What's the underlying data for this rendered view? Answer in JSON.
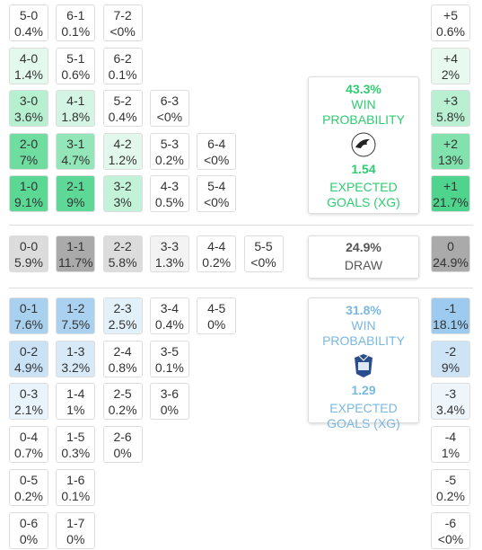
{
  "sections": [
    {
      "rows": [
        {
          "cells": [
            {
              "score": "5-0",
              "prob": "0.4%",
              "color": "#ffffff"
            },
            {
              "score": "6-1",
              "prob": "0.1%",
              "color": "#ffffff"
            },
            {
              "score": "7-2",
              "prob": "<0%",
              "color": "#ffffff"
            }
          ],
          "margin": {
            "score": "+5",
            "prob": "0.6%",
            "color": "#ffffff"
          }
        },
        {
          "cells": [
            {
              "score": "4-0",
              "prob": "1.4%",
              "color": "#e4f9ed"
            },
            {
              "score": "5-1",
              "prob": "0.6%",
              "color": "#ffffff"
            },
            {
              "score": "6-2",
              "prob": "0.1%",
              "color": "#ffffff"
            }
          ],
          "margin": {
            "score": "+4",
            "prob": "2%",
            "color": "#e8faf0"
          }
        },
        {
          "cells": [
            {
              "score": "3-0",
              "prob": "3.6%",
              "color": "#b6f0d0"
            },
            {
              "score": "4-1",
              "prob": "1.8%",
              "color": "#d4f5e3"
            },
            {
              "score": "5-2",
              "prob": "0.4%",
              "color": "#ffffff"
            },
            {
              "score": "6-3",
              "prob": "<0%",
              "color": "#ffffff"
            }
          ],
          "margin": {
            "score": "+3",
            "prob": "5.8%",
            "color": "#b9f0d2"
          }
        },
        {
          "cells": [
            {
              "score": "2-0",
              "prob": "7%",
              "color": "#6fdca0"
            },
            {
              "score": "3-1",
              "prob": "4.7%",
              "color": "#93e6b8"
            },
            {
              "score": "4-2",
              "prob": "1.2%",
              "color": "#e3f8ec"
            },
            {
              "score": "5-3",
              "prob": "0.2%",
              "color": "#ffffff"
            },
            {
              "score": "6-4",
              "prob": "<0%",
              "color": "#ffffff"
            }
          ],
          "margin": {
            "score": "+2",
            "prob": "13%",
            "color": "#82e2ad"
          }
        },
        {
          "cells": [
            {
              "score": "1-0",
              "prob": "9.1%",
              "color": "#5cd895"
            },
            {
              "score": "2-1",
              "prob": "9%",
              "color": "#5ed896"
            },
            {
              "score": "3-2",
              "prob": "3%",
              "color": "#c2f2d7"
            },
            {
              "score": "4-3",
              "prob": "0.5%",
              "color": "#ffffff"
            },
            {
              "score": "5-4",
              "prob": "<0%",
              "color": "#ffffff"
            }
          ],
          "margin": {
            "score": "+1",
            "prob": "21.7%",
            "color": "#4fd48d"
          }
        }
      ],
      "panel": {
        "prob": "43.3%",
        "label": "WIN PROBABILITY",
        "xg": "1.54",
        "xg_label": "EXPECTED GOALS (XG)",
        "color": "#2ecc71"
      }
    },
    {
      "rows": [
        {
          "cells": [
            {
              "score": "0-0",
              "prob": "5.9%",
              "color": "#dcdcdc"
            },
            {
              "score": "1-1",
              "prob": "11.7%",
              "color": "#aaaaaa"
            },
            {
              "score": "2-2",
              "prob": "5.8%",
              "color": "#dcdcdc"
            },
            {
              "score": "3-3",
              "prob": "1.3%",
              "color": "#f3f3f3"
            },
            {
              "score": "4-4",
              "prob": "0.2%",
              "color": "#ffffff"
            },
            {
              "score": "5-5",
              "prob": "<0%",
              "color": "#ffffff"
            }
          ],
          "margin": {
            "score": "0",
            "prob": "24.9%",
            "color": "#aaaaaa"
          }
        }
      ],
      "panel": {
        "prob": "24.9%",
        "label": "DRAW",
        "color": "#555555"
      }
    },
    {
      "rows": [
        {
          "cells": [
            {
              "score": "0-1",
              "prob": "7.6%",
              "color": "#a8d1f0"
            },
            {
              "score": "1-2",
              "prob": "7.5%",
              "color": "#aad2f0"
            },
            {
              "score": "2-3",
              "prob": "2.5%",
              "color": "#e2f0fa"
            },
            {
              "score": "3-4",
              "prob": "0.4%",
              "color": "#ffffff"
            },
            {
              "score": "4-5",
              "prob": "0%",
              "color": "#ffffff"
            }
          ],
          "margin": {
            "score": "-1",
            "prob": "18.1%",
            "color": "#9ccbef"
          }
        },
        {
          "cells": [
            {
              "score": "0-2",
              "prob": "4.9%",
              "color": "#c9e2f6"
            },
            {
              "score": "1-3",
              "prob": "3.2%",
              "color": "#d8eaf8"
            },
            {
              "score": "2-4",
              "prob": "0.8%",
              "color": "#ffffff"
            },
            {
              "score": "3-5",
              "prob": "0.1%",
              "color": "#ffffff"
            }
          ],
          "margin": {
            "score": "-2",
            "prob": "9%",
            "color": "#cde4f6"
          }
        },
        {
          "cells": [
            {
              "score": "0-3",
              "prob": "2.1%",
              "color": "#e8f3fb"
            },
            {
              "score": "1-4",
              "prob": "1%",
              "color": "#ffffff"
            },
            {
              "score": "2-5",
              "prob": "0.2%",
              "color": "#ffffff"
            },
            {
              "score": "3-6",
              "prob": "0%",
              "color": "#ffffff"
            }
          ],
          "margin": {
            "score": "-3",
            "prob": "3.4%",
            "color": "#eef6fc"
          }
        },
        {
          "cells": [
            {
              "score": "0-4",
              "prob": "0.7%",
              "color": "#ffffff"
            },
            {
              "score": "1-5",
              "prob": "0.3%",
              "color": "#ffffff"
            },
            {
              "score": "2-6",
              "prob": "0%",
              "color": "#ffffff"
            }
          ],
          "margin": {
            "score": "-4",
            "prob": "1%",
            "color": "#ffffff"
          }
        },
        {
          "cells": [
            {
              "score": "0-5",
              "prob": "0.2%",
              "color": "#ffffff"
            },
            {
              "score": "1-6",
              "prob": "0.1%",
              "color": "#ffffff"
            }
          ],
          "margin": {
            "score": "-5",
            "prob": "0.2%",
            "color": "#ffffff"
          }
        },
        {
          "cells": [
            {
              "score": "0-6",
              "prob": "0%",
              "color": "#ffffff"
            },
            {
              "score": "1-7",
              "prob": "0%",
              "color": "#ffffff"
            }
          ],
          "margin": {
            "score": "-6",
            "prob": "<0%",
            "color": "#ffffff"
          }
        }
      ],
      "panel": {
        "prob": "31.8%",
        "label": "WIN PROBABILITY",
        "xg": "1.29",
        "xg_label": "EXPECTED GOALS (XG)",
        "color": "#7ab8e0"
      }
    }
  ]
}
